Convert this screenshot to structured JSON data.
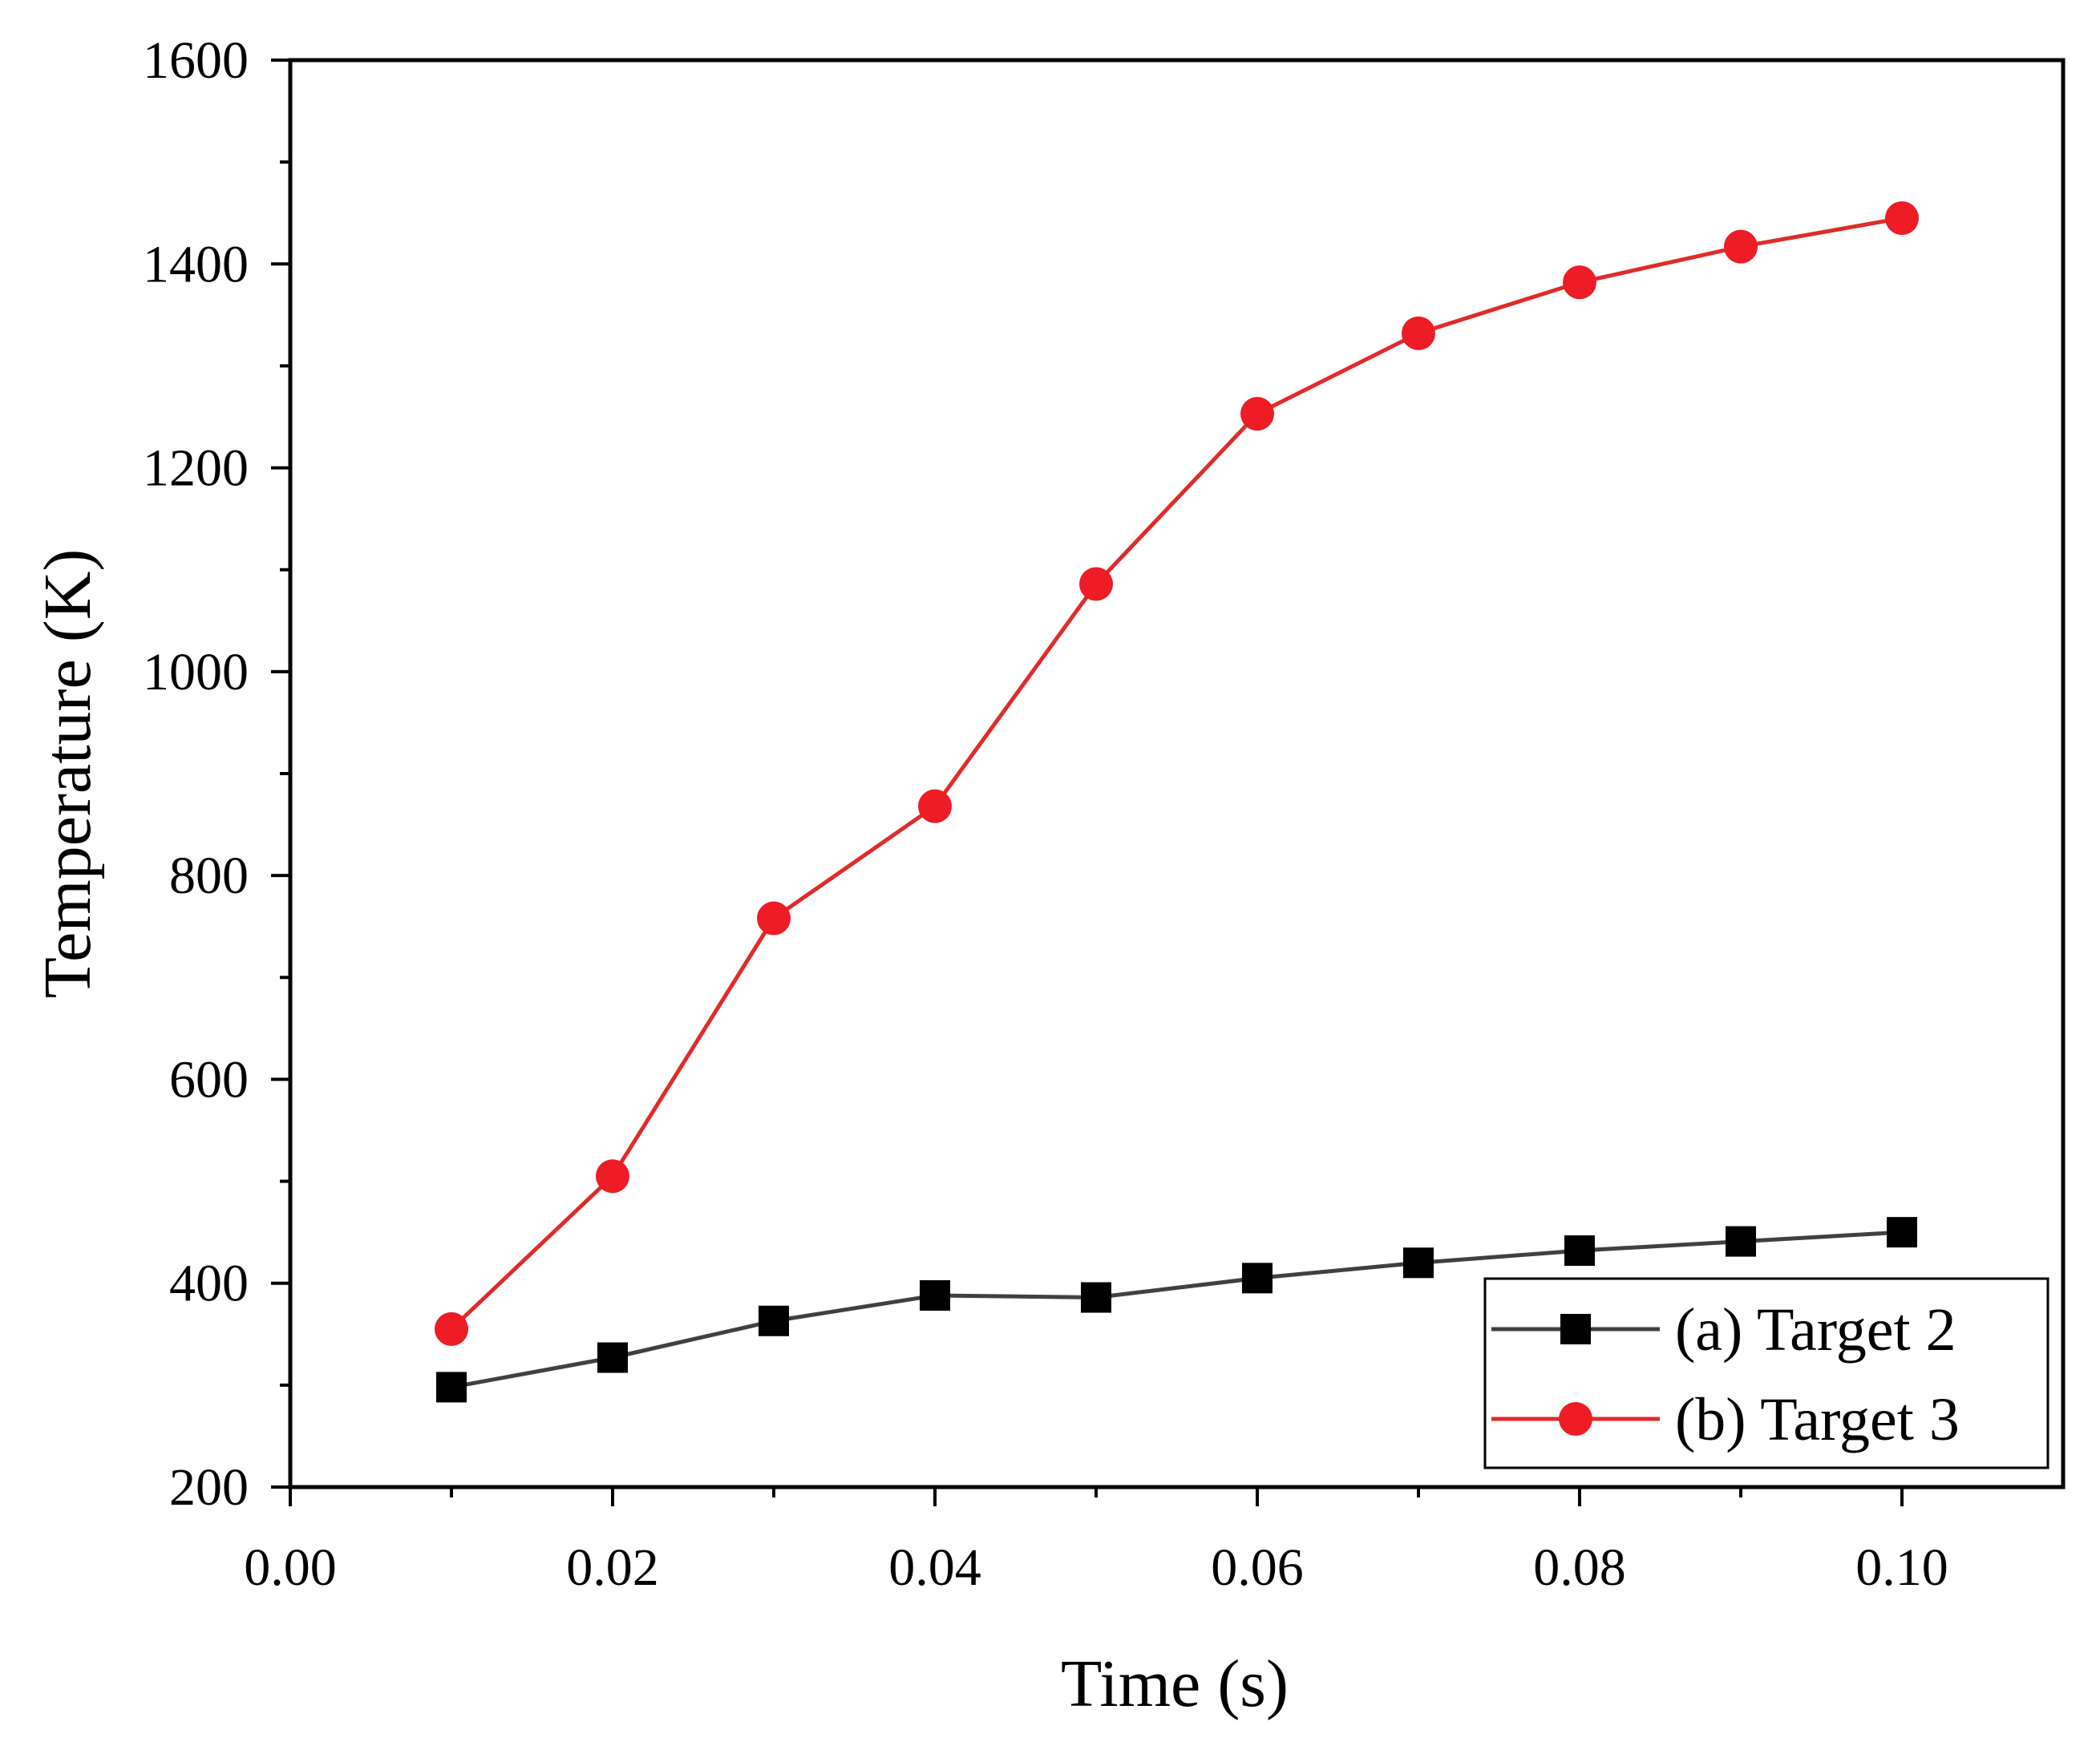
{
  "chart_data": {
    "type": "line",
    "title": "",
    "xlabel": "Time (s)",
    "ylabel": "Temperature (K)",
    "xlim": [
      0,
      0.11
    ],
    "ylim": [
      200,
      1600
    ],
    "x_major_ticks": [
      0.0,
      0.02,
      0.04,
      0.06,
      0.08,
      0.1
    ],
    "x_tick_labels": [
      "0.00",
      "0.02",
      "0.04",
      "0.06",
      "0.08",
      "0.10"
    ],
    "y_major_ticks": [
      200,
      400,
      600,
      800,
      1000,
      1200,
      1400,
      1600
    ],
    "y_tick_labels": [
      "200",
      "400",
      "600",
      "800",
      "1000",
      "1200",
      "1400",
      "1600"
    ],
    "grid": false,
    "legend_position": "bottom-right",
    "series": [
      {
        "name": "(a) Target 2",
        "marker": "square",
        "color": "#000000",
        "line_color": "#404040",
        "x": [
          0.01,
          0.02,
          0.03,
          0.04,
          0.05,
          0.06,
          0.07,
          0.08,
          0.09,
          0.1
        ],
        "values": [
          298,
          327,
          363,
          388,
          386,
          405,
          420,
          432,
          441,
          450
        ]
      },
      {
        "name": "(b) Target 3",
        "marker": "circle",
        "color": "#ee1c25",
        "line_color": "#e02b2b",
        "x": [
          0.01,
          0.02,
          0.03,
          0.04,
          0.05,
          0.06,
          0.07,
          0.08,
          0.09,
          0.1
        ],
        "values": [
          355,
          505,
          758,
          868,
          1086,
          1253,
          1332,
          1382,
          1417,
          1445
        ]
      }
    ]
  }
}
